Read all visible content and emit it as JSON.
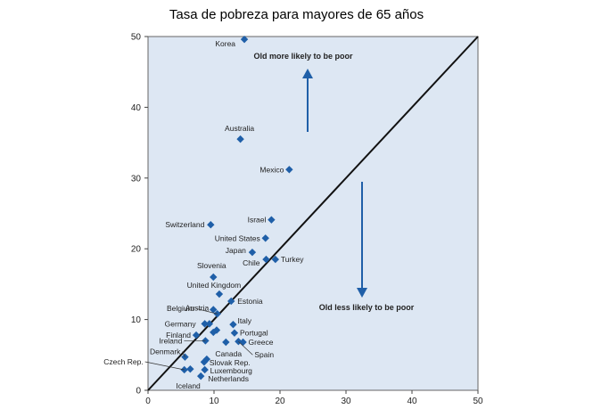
{
  "title": "Tasa de pobreza para mayores de 65 años",
  "chart_data": {
    "type": "scatter",
    "title": "Tasa de pobreza para mayores de 65 años",
    "xlim": [
      0,
      50
    ],
    "ylim": [
      0,
      50
    ],
    "x_ticks": [
      0,
      10,
      20,
      30,
      40,
      50
    ],
    "y_ticks": [
      0,
      10,
      20,
      30,
      40,
      50
    ],
    "grid": false,
    "diagonal_line": true,
    "marker_color": "#1f5fa8",
    "background_color": "#dde7f3",
    "annotations": [
      {
        "text": "Old more likely to be poor",
        "direction": "up"
      },
      {
        "text": "Old less likely to be poor",
        "direction": "down"
      }
    ],
    "points": [
      {
        "label": "Korea",
        "x": 14.6,
        "y": 49.6
      },
      {
        "label": "Australia",
        "x": 14.0,
        "y": 35.5
      },
      {
        "label": "Mexico",
        "x": 21.4,
        "y": 31.2
      },
      {
        "label": "Israel",
        "x": 18.7,
        "y": 24.1
      },
      {
        "label": "Switzerland",
        "x": 9.5,
        "y": 23.4
      },
      {
        "label": "United States",
        "x": 17.8,
        "y": 21.5
      },
      {
        "label": "Japan",
        "x": 15.8,
        "y": 19.5
      },
      {
        "label": "Chile",
        "x": 17.9,
        "y": 18.5
      },
      {
        "label": "Turkey",
        "x": 19.3,
        "y": 18.5
      },
      {
        "label": "Slovenia",
        "x": 9.9,
        "y": 16.0
      },
      {
        "label": "United Kingdom",
        "x": 10.8,
        "y": 13.6
      },
      {
        "label": "Estonia",
        "x": 12.6,
        "y": 12.6
      },
      {
        "label": "Austria",
        "x": 9.9,
        "y": 11.4
      },
      {
        "label": "Belgium",
        "x": 10.5,
        "y": 10.8
      },
      {
        "label": "Germany",
        "x": 8.6,
        "y": 9.4
      },
      {
        "label": "Italy",
        "x": 12.9,
        "y": 9.3
      },
      {
        "label": "Portugal",
        "x": 13.1,
        "y": 8.1
      },
      {
        "label": "Finland",
        "x": 7.3,
        "y": 7.8
      },
      {
        "label": "Ireland",
        "x": 8.7,
        "y": 7.0
      },
      {
        "label": "Greece",
        "x": 14.4,
        "y": 6.8
      },
      {
        "label": "Canada",
        "x": 11.8,
        "y": 6.8
      },
      {
        "label": "Spain",
        "x": 13.7,
        "y": 6.9
      },
      {
        "label": "Denmark",
        "x": 5.6,
        "y": 4.7
      },
      {
        "label": "Slovak Rep.",
        "x": 8.5,
        "y": 4.0
      },
      {
        "label": "Czech Rep.",
        "x": 5.5,
        "y": 2.9
      },
      {
        "label": "Iceland",
        "x": 6.4,
        "y": 3.0
      },
      {
        "label": "Luxembourg",
        "x": 8.6,
        "y": 2.9
      },
      {
        "label": "Netherlands",
        "x": 8.0,
        "y": 2.0
      },
      {
        "label": "",
        "x": 10.4,
        "y": 8.5
      },
      {
        "label": "",
        "x": 9.9,
        "y": 8.2
      },
      {
        "label": "",
        "x": 9.3,
        "y": 9.4
      },
      {
        "label": "",
        "x": 8.9,
        "y": 4.4
      }
    ]
  }
}
